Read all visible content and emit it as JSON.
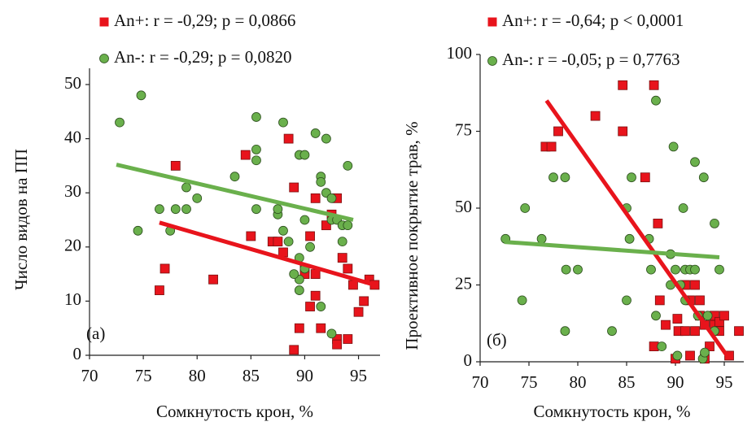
{
  "chart_data": [
    {
      "type": "scatter",
      "annotation": "(a)",
      "x_label": "Сомкнутость крон, %",
      "y_label": "Число видов на ПП",
      "xlim": [
        70,
        97
      ],
      "ylim": [
        0,
        53
      ],
      "xticks": [
        70,
        75,
        80,
        85,
        90,
        95
      ],
      "yticks": [
        0,
        10,
        20,
        30,
        40,
        50
      ],
      "series": [
        {
          "name": "An+: r = -0,29; p = 0,0866",
          "color": "#e8141c",
          "x": [
            78,
            77,
            76.5,
            81.5,
            84.5,
            85,
            87,
            87.5,
            88,
            88.5,
            89,
            89,
            89.5,
            90,
            90,
            90.5,
            90.5,
            91,
            91,
            91,
            91.5,
            92,
            92.5,
            93,
            93,
            93,
            93.5,
            94,
            94,
            94.5,
            95,
            95.5,
            96,
            96.5
          ],
          "values": [
            35,
            16,
            12,
            14,
            37,
            22,
            21,
            21,
            19,
            40,
            31,
            1,
            5,
            16,
            15,
            9,
            22,
            29,
            15,
            11,
            5,
            24,
            26,
            29,
            3,
            2,
            18,
            16,
            3,
            13,
            8,
            10,
            14,
            13
          ],
          "trend": {
            "x": [
              76.5,
              96.5
            ],
            "values": [
              24.5,
              13
            ]
          }
        },
        {
          "name": "An-: r = -0,29; p = 0,0820",
          "color": "#6ab04c",
          "x": [
            72.8,
            74.5,
            74.8,
            76.5,
            77.5,
            78,
            79,
            79,
            80,
            83.5,
            85.5,
            85.5,
            85.5,
            85.5,
            87.5,
            87.5,
            88,
            88,
            88.5,
            89.5,
            89.5,
            89.5,
            89.5,
            90,
            90,
            90,
            90.5,
            91,
            91.5,
            91.5,
            91.5,
            92,
            92,
            92.5,
            92.5,
            92.5,
            93,
            93.5,
            93.5,
            94,
            94,
            89
          ],
          "values": [
            43,
            23,
            48,
            27,
            23,
            27,
            31,
            27,
            29,
            33,
            44,
            38,
            36,
            27,
            26,
            27,
            43,
            23,
            21,
            37,
            18,
            14,
            12,
            37,
            25,
            16,
            20,
            41,
            33,
            32,
            9,
            40,
            30,
            29,
            25,
            4,
            25,
            24,
            21,
            35,
            24,
            15
          ],
          "trend": {
            "x": [
              72.5,
              94.5
            ],
            "values": [
              35.2,
              25
            ]
          }
        }
      ]
    },
    {
      "type": "scatter",
      "annotation": "(б)",
      "x_label": "Сомкнутость крон, %",
      "y_label": "Проективное покрытие трав, %",
      "xlim": [
        70,
        97
      ],
      "ylim": [
        0,
        100
      ],
      "xticks": [
        70,
        75,
        80,
        85,
        90,
        95
      ],
      "yticks": [
        0,
        25,
        50,
        75,
        100
      ],
      "series": [
        {
          "name": "An+: r = -0,64; p < 0,0001",
          "color": "#e8141c",
          "x": [
            76.7,
            77.3,
            78,
            81.8,
            84.6,
            84.6,
            86.9,
            87.8,
            87.8,
            88.2,
            88.4,
            89,
            90,
            90.2,
            90.3,
            91,
            91,
            91.5,
            91.5,
            92,
            92,
            92.5,
            92.5,
            93,
            93,
            93.5,
            94,
            94,
            94.5,
            94.5,
            95,
            95.5,
            96.5
          ],
          "values": [
            70,
            70,
            75,
            80,
            75,
            90,
            60,
            90,
            5,
            45,
            20,
            12,
            1,
            14,
            10,
            10,
            25,
            20,
            2,
            10,
            25,
            20,
            15,
            1,
            12,
            5,
            12,
            15,
            10,
            13,
            15,
            2,
            10
          ],
          "trend": {
            "x": [
              76.8,
              95.5
            ],
            "values": [
              85,
              1
            ]
          }
        },
        {
          "name": "An-: r = -0,05; p = 0,7763",
          "color": "#6ab04c",
          "x": [
            72.6,
            74.3,
            74.6,
            76.3,
            77.5,
            78.7,
            78.8,
            78.7,
            80,
            83.5,
            85,
            85.3,
            85.5,
            85,
            87.3,
            87.5,
            88,
            88,
            88.6,
            89.5,
            89.5,
            89.8,
            90,
            90.2,
            90.5,
            90.8,
            91,
            91,
            91.5,
            92,
            92,
            92.3,
            92.8,
            92.9,
            93.3,
            94,
            94,
            94.5,
            93
          ],
          "values": [
            40,
            20,
            50,
            40,
            60,
            60,
            30,
            10,
            30,
            10,
            50,
            40,
            60,
            20,
            40,
            30,
            85,
            15,
            5,
            35,
            25,
            70,
            30,
            2,
            25,
            50,
            30,
            20,
            30,
            65,
            30,
            15,
            1,
            60,
            15,
            45,
            10,
            30,
            3
          ],
          "trend": {
            "x": [
              72.5,
              94.5
            ],
            "values": [
              39,
              34
            ]
          }
        }
      ]
    }
  ]
}
